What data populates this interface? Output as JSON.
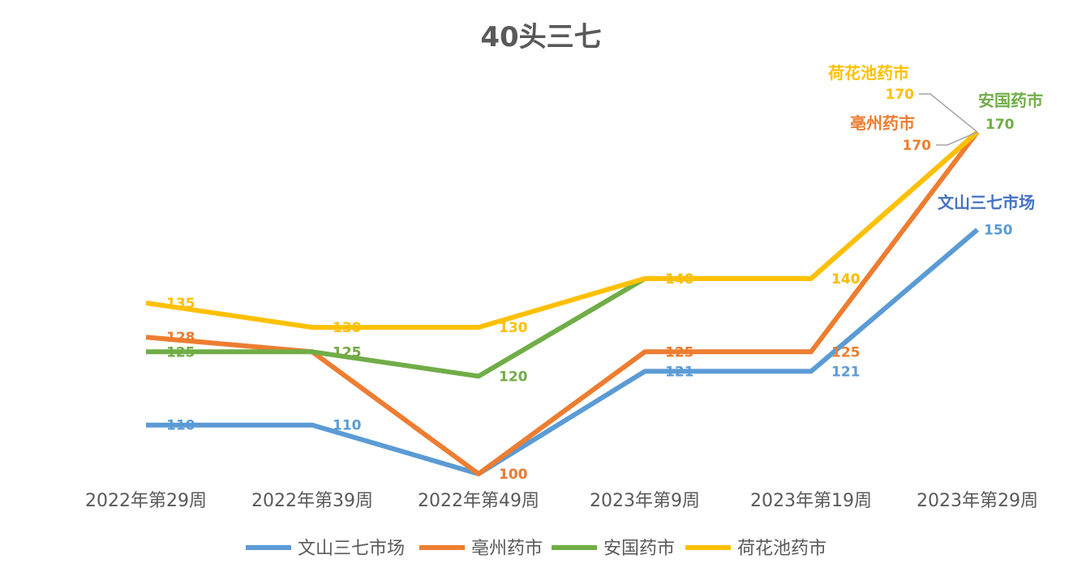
{
  "chart_data": {
    "type": "line",
    "title": "40头三七",
    "categories": [
      "2022年第29周",
      "2022年第39周",
      "2022年第49周",
      "2023年第9周",
      "2023年第19周",
      "2023年第29周"
    ],
    "ylim": [
      100,
      170
    ],
    "grid": false,
    "legend_position": "bottom",
    "series": [
      {
        "name": "文山三七市场",
        "color": "#5b9bd5",
        "label_color": "#4472c4",
        "values": [
          110,
          110,
          100,
          121,
          121,
          150
        ]
      },
      {
        "name": "亳州药市",
        "color": "#ed7d31",
        "label_color": "#ed7d31",
        "values": [
          128,
          125,
          100,
          125,
          125,
          170
        ]
      },
      {
        "name": "安国药市",
        "color": "#70ad47",
        "label_color": "#70ad47",
        "values": [
          125,
          125,
          120,
          140,
          140,
          170
        ]
      },
      {
        "name": "荷花池药市",
        "color": "#ffc000",
        "label_color": "#ffc000",
        "values": [
          135,
          130,
          130,
          140,
          140,
          170
        ]
      }
    ]
  }
}
